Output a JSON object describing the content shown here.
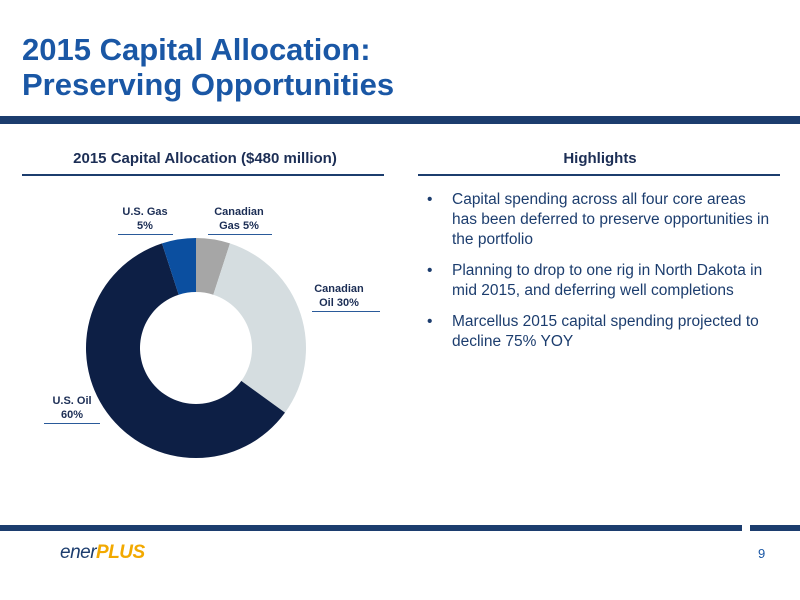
{
  "page": {
    "title_line1": "2015 Capital Allocation:",
    "title_line2": "Preserving Opportunities",
    "page_number": "9"
  },
  "left_panel": {
    "heading": "2015 Capital Allocation ($480 million)"
  },
  "right_panel": {
    "heading": "Highlights",
    "bullets": [
      "Capital spending across all four core areas has been deferred to preserve opportunities in the portfolio",
      "Planning to drop to one rig in North Dakota in mid 2015, and deferring well completions",
      "Marcellus 2015 capital spending projected to decline 75% YOY"
    ]
  },
  "logo": {
    "part1": "ener",
    "part2": "PLUS"
  },
  "colors": {
    "title_blue": "#1a57a5",
    "navy": "#1c3d6e",
    "accent_gold": "#f2a900"
  },
  "chart_data": {
    "type": "pie",
    "title": "2015 Capital Allocation ($480 million)",
    "donut": true,
    "slices": [
      {
        "label_line1": "Canadian",
        "label_line2": "Gas 5%",
        "value": 5,
        "color": "#a6a6a6"
      },
      {
        "label_line1": "Canadian",
        "label_line2": "Oil 30%",
        "value": 30,
        "color": "#d5dde0"
      },
      {
        "label_line1": "U.S. Oil",
        "label_line2": "60%",
        "value": 60,
        "color": "#0d1f45"
      },
      {
        "label_line1": "U.S. Gas",
        "label_line2": "5%",
        "value": 5,
        "color": "#0b4fa0"
      }
    ],
    "start_angle_deg": 0,
    "direction": "clockwise"
  }
}
